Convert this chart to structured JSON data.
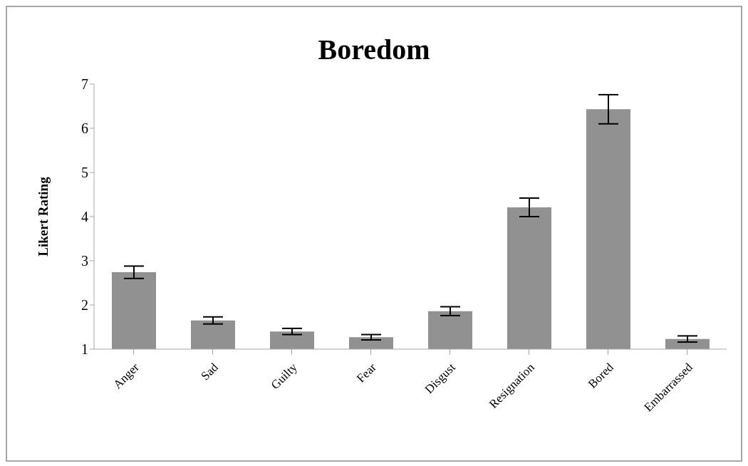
{
  "chart_data": {
    "type": "bar",
    "title": "Boredom",
    "ylabel": "Likert Rating",
    "categories": [
      "Anger",
      "Sad",
      "Guilty",
      "Fear",
      "Disgust",
      "Resignation",
      "Bored",
      "Embarrassed"
    ],
    "values": [
      2.74,
      1.65,
      1.4,
      1.27,
      1.86,
      4.21,
      6.43,
      1.23
    ],
    "errors": [
      0.14,
      0.08,
      0.07,
      0.06,
      0.1,
      0.21,
      0.33,
      0.07
    ],
    "color": "#919191",
    "ylim": [
      1,
      7
    ],
    "yticks": [
      1,
      2,
      3,
      4,
      5,
      6,
      7
    ],
    "grid": false,
    "legend": false
  }
}
